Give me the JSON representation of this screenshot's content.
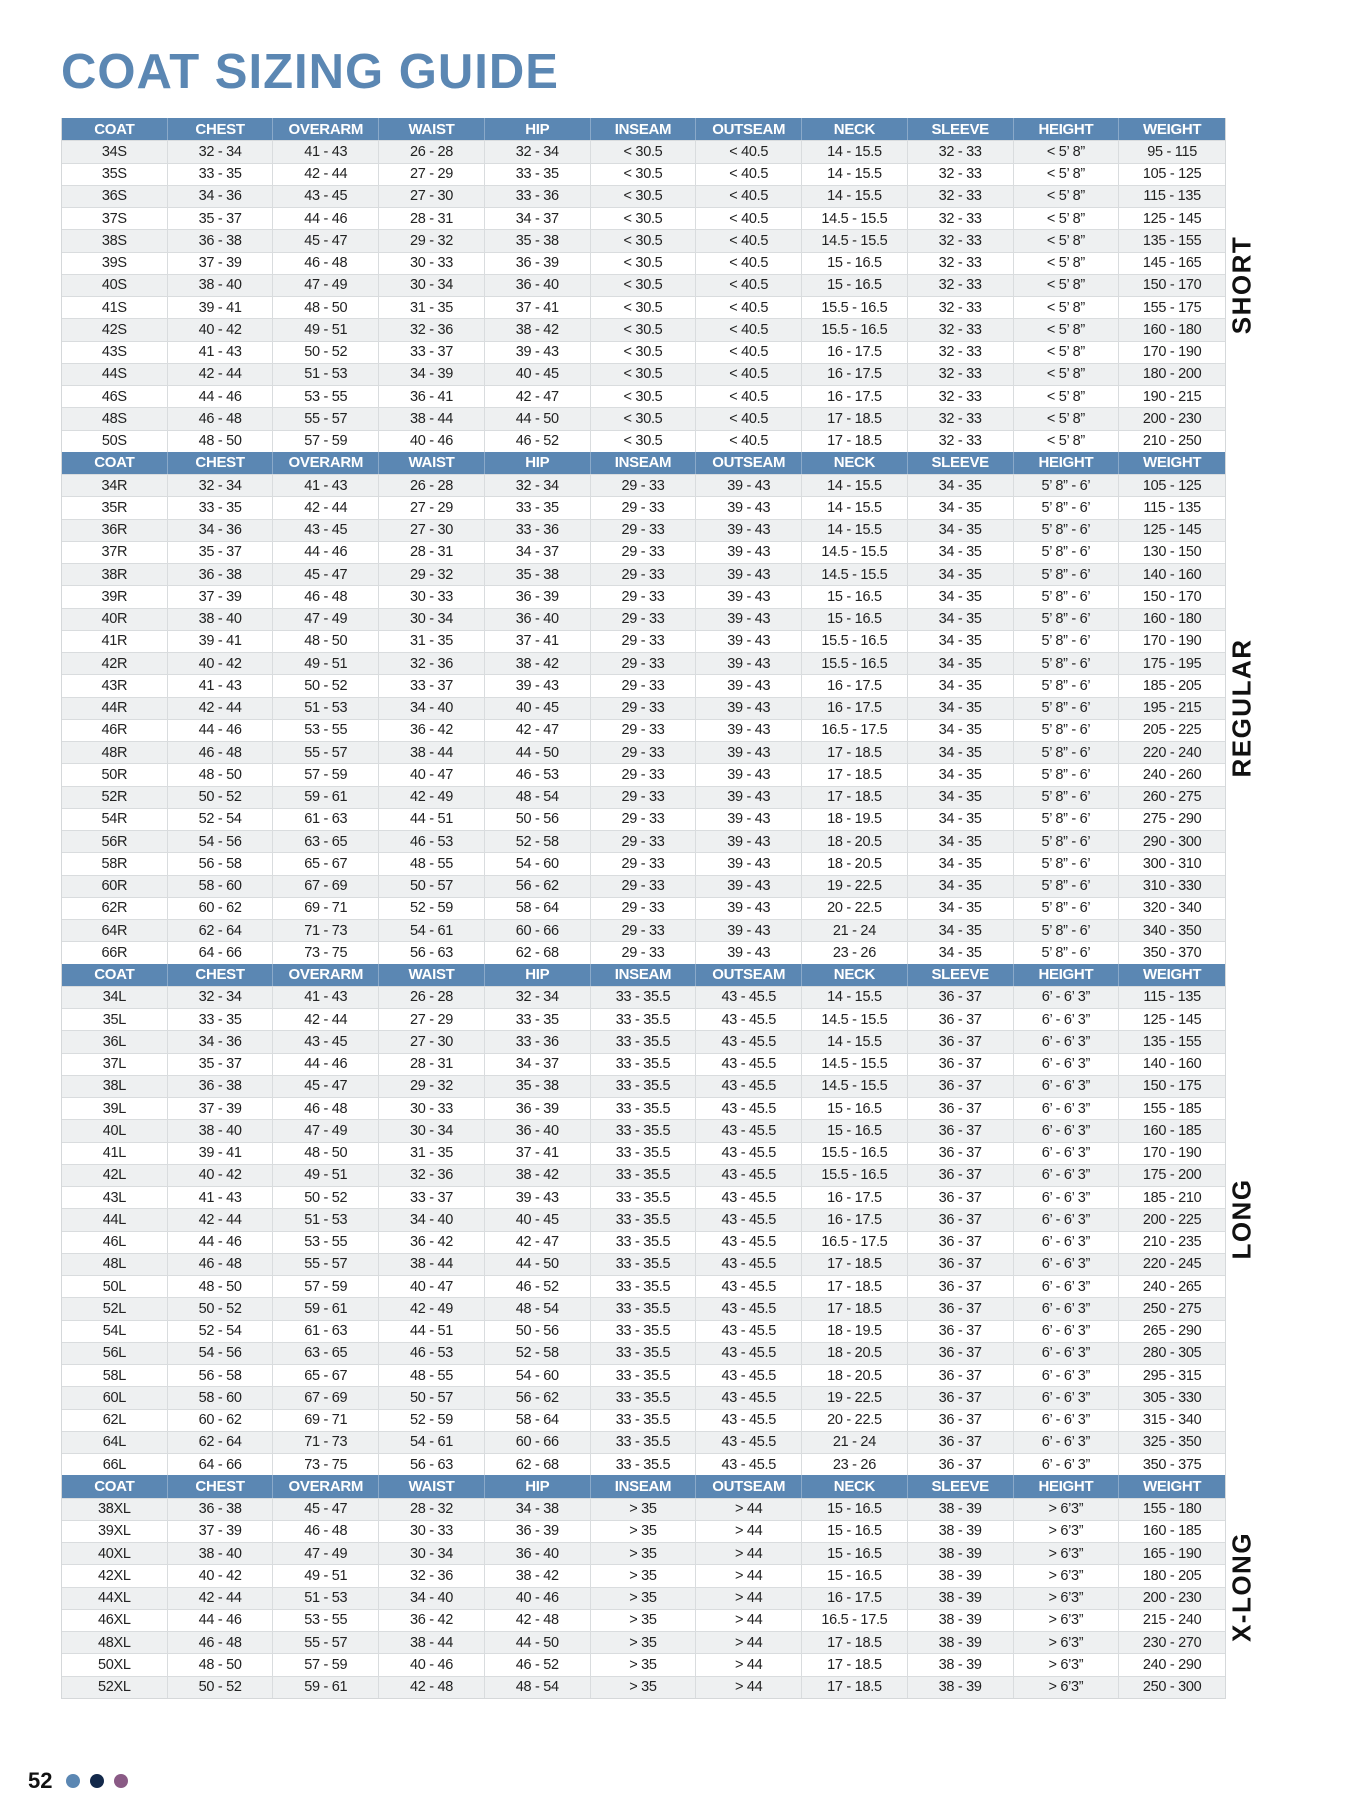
{
  "title": "COAT SIZING GUIDE",
  "columns": [
    "COAT",
    "CHEST",
    "OVERARM",
    "WAIST",
    "HIP",
    "INSEAM",
    "OUTSEAM",
    "NECK",
    "SLEEVE",
    "HEIGHT",
    "WEIGHT"
  ],
  "colors": {
    "accent": "#5b87b3",
    "header_text": "#ffffff",
    "row_alt": "#eef0f1",
    "dot1": "#5b87b3",
    "dot2": "#13294b",
    "dot3": "#8a5a85"
  },
  "sections": [
    {
      "label": "SHORT",
      "rows": [
        [
          "34S",
          "32 - 34",
          "41 - 43",
          "26 - 28",
          "32 - 34",
          "< 30.5",
          "< 40.5",
          "14 - 15.5",
          "32 - 33",
          "< 5’ 8”",
          "95 - 115"
        ],
        [
          "35S",
          "33 - 35",
          "42 - 44",
          "27 - 29",
          "33 - 35",
          "< 30.5",
          "< 40.5",
          "14 - 15.5",
          "32 - 33",
          "< 5’ 8”",
          "105 - 125"
        ],
        [
          "36S",
          "34 - 36",
          "43 - 45",
          "27 - 30",
          "33 - 36",
          "< 30.5",
          "< 40.5",
          "14 - 15.5",
          "32 - 33",
          "< 5’ 8”",
          "115 - 135"
        ],
        [
          "37S",
          "35 - 37",
          "44 - 46",
          "28 - 31",
          "34 - 37",
          "< 30.5",
          "< 40.5",
          "14.5 - 15.5",
          "32 - 33",
          "< 5’ 8”",
          "125 - 145"
        ],
        [
          "38S",
          "36 - 38",
          "45 - 47",
          "29 - 32",
          "35 - 38",
          "< 30.5",
          "< 40.5",
          "14.5 - 15.5",
          "32 - 33",
          "< 5’ 8”",
          "135 - 155"
        ],
        [
          "39S",
          "37 - 39",
          "46 - 48",
          "30 - 33",
          "36 - 39",
          "< 30.5",
          "< 40.5",
          "15 - 16.5",
          "32 - 33",
          "< 5’ 8”",
          "145 - 165"
        ],
        [
          "40S",
          "38 - 40",
          "47 - 49",
          "30 - 34",
          "36 - 40",
          "< 30.5",
          "< 40.5",
          "15 - 16.5",
          "32 - 33",
          "< 5’ 8”",
          "150 - 170"
        ],
        [
          "41S",
          "39 - 41",
          "48 - 50",
          "31 - 35",
          "37 - 41",
          "< 30.5",
          "< 40.5",
          "15.5 - 16.5",
          "32 - 33",
          "< 5’ 8”",
          "155 - 175"
        ],
        [
          "42S",
          "40 - 42",
          "49 - 51",
          "32 - 36",
          "38 - 42",
          "< 30.5",
          "< 40.5",
          "15.5 - 16.5",
          "32 - 33",
          "< 5’ 8”",
          "160 - 180"
        ],
        [
          "43S",
          "41 - 43",
          "50 - 52",
          "33 - 37",
          "39 - 43",
          "< 30.5",
          "< 40.5",
          "16 - 17.5",
          "32 - 33",
          "< 5’ 8”",
          "170 - 190"
        ],
        [
          "44S",
          "42 - 44",
          "51 - 53",
          "34 - 39",
          "40 - 45",
          "< 30.5",
          "< 40.5",
          "16 - 17.5",
          "32 - 33",
          "< 5’ 8”",
          "180 - 200"
        ],
        [
          "46S",
          "44 - 46",
          "53 - 55",
          "36 - 41",
          "42 - 47",
          "< 30.5",
          "< 40.5",
          "16 - 17.5",
          "32 - 33",
          "< 5’ 8”",
          "190 - 215"
        ],
        [
          "48S",
          "46 - 48",
          "55 - 57",
          "38 - 44",
          "44 - 50",
          "< 30.5",
          "< 40.5",
          "17 - 18.5",
          "32 - 33",
          "< 5’ 8”",
          "200 - 230"
        ],
        [
          "50S",
          "48 - 50",
          "57 - 59",
          "40 - 46",
          "46 - 52",
          "< 30.5",
          "< 40.5",
          "17 - 18.5",
          "32 - 33",
          "< 5’ 8”",
          "210 - 250"
        ]
      ]
    },
    {
      "label": "REGULAR",
      "rows": [
        [
          "34R",
          "32 - 34",
          "41 - 43",
          "26 - 28",
          "32 - 34",
          "29 - 33",
          "39 - 43",
          "14 - 15.5",
          "34 - 35",
          "5’ 8” - 6’",
          "105 - 125"
        ],
        [
          "35R",
          "33 - 35",
          "42 - 44",
          "27 - 29",
          "33 - 35",
          "29 - 33",
          "39 - 43",
          "14 - 15.5",
          "34 - 35",
          "5’ 8” - 6’",
          "115 - 135"
        ],
        [
          "36R",
          "34 - 36",
          "43 - 45",
          "27 - 30",
          "33 - 36",
          "29 - 33",
          "39 - 43",
          "14 - 15.5",
          "34 - 35",
          "5’ 8” - 6’",
          "125 - 145"
        ],
        [
          "37R",
          "35 - 37",
          "44 - 46",
          "28 - 31",
          "34 - 37",
          "29 - 33",
          "39 - 43",
          "14.5 - 15.5",
          "34 - 35",
          "5’ 8” - 6’",
          "130 - 150"
        ],
        [
          "38R",
          "36 - 38",
          "45 - 47",
          "29 - 32",
          "35 - 38",
          "29 - 33",
          "39 - 43",
          "14.5 - 15.5",
          "34 - 35",
          "5’ 8” - 6’",
          "140 - 160"
        ],
        [
          "39R",
          "37 - 39",
          "46 - 48",
          "30 - 33",
          "36 - 39",
          "29 - 33",
          "39 - 43",
          "15 - 16.5",
          "34 - 35",
          "5’ 8” - 6’",
          "150 - 170"
        ],
        [
          "40R",
          "38 - 40",
          "47 - 49",
          "30 - 34",
          "36 - 40",
          "29 - 33",
          "39 - 43",
          "15 - 16.5",
          "34 - 35",
          "5’ 8” - 6’",
          "160 - 180"
        ],
        [
          "41R",
          "39 - 41",
          "48 - 50",
          "31 - 35",
          "37 - 41",
          "29 - 33",
          "39 - 43",
          "15.5 - 16.5",
          "34 - 35",
          "5’ 8” - 6’",
          "170 - 190"
        ],
        [
          "42R",
          "40 - 42",
          "49 - 51",
          "32 - 36",
          "38 - 42",
          "29 - 33",
          "39 - 43",
          "15.5 - 16.5",
          "34 - 35",
          "5’ 8” - 6’",
          "175 - 195"
        ],
        [
          "43R",
          "41 - 43",
          "50 - 52",
          "33 - 37",
          "39 - 43",
          "29 - 33",
          "39 - 43",
          "16 - 17.5",
          "34 - 35",
          "5’ 8” - 6’",
          "185 - 205"
        ],
        [
          "44R",
          "42 - 44",
          "51 - 53",
          "34 - 40",
          "40 - 45",
          "29 - 33",
          "39 - 43",
          "16 - 17.5",
          "34 - 35",
          "5’ 8” - 6’",
          "195 - 215"
        ],
        [
          "46R",
          "44 - 46",
          "53 - 55",
          "36 - 42",
          "42 - 47",
          "29 - 33",
          "39 - 43",
          "16.5 - 17.5",
          "34 - 35",
          "5’ 8” - 6’",
          "205 - 225"
        ],
        [
          "48R",
          "46 - 48",
          "55 - 57",
          "38 - 44",
          "44 - 50",
          "29 - 33",
          "39 - 43",
          "17 - 18.5",
          "34 - 35",
          "5’ 8” - 6’",
          "220 - 240"
        ],
        [
          "50R",
          "48 - 50",
          "57 - 59",
          "40 - 47",
          "46 - 53",
          "29 - 33",
          "39 - 43",
          "17 - 18.5",
          "34 - 35",
          "5’ 8” - 6’",
          "240 - 260"
        ],
        [
          "52R",
          "50 - 52",
          "59 - 61",
          "42 - 49",
          "48 - 54",
          "29 - 33",
          "39 - 43",
          "17 - 18.5",
          "34 - 35",
          "5’ 8” - 6’",
          "260 - 275"
        ],
        [
          "54R",
          "52 - 54",
          "61 - 63",
          "44 - 51",
          "50 - 56",
          "29 - 33",
          "39 - 43",
          "18 - 19.5",
          "34 - 35",
          "5’ 8” - 6’",
          "275 - 290"
        ],
        [
          "56R",
          "54 - 56",
          "63 - 65",
          "46 - 53",
          "52 - 58",
          "29 - 33",
          "39 - 43",
          "18 - 20.5",
          "34 - 35",
          "5’ 8” - 6’",
          "290 - 300"
        ],
        [
          "58R",
          "56 - 58",
          "65 - 67",
          "48 - 55",
          "54 - 60",
          "29 - 33",
          "39 - 43",
          "18 - 20.5",
          "34 - 35",
          "5’ 8” - 6’",
          "300 - 310"
        ],
        [
          "60R",
          "58 - 60",
          "67 - 69",
          "50 - 57",
          "56 - 62",
          "29 - 33",
          "39 - 43",
          "19 - 22.5",
          "34 - 35",
          "5’ 8” - 6’",
          "310 - 330"
        ],
        [
          "62R",
          "60 - 62",
          "69 - 71",
          "52 - 59",
          "58 - 64",
          "29 - 33",
          "39 - 43",
          "20 - 22.5",
          "34 - 35",
          "5’ 8” - 6’",
          "320 - 340"
        ],
        [
          "64R",
          "62 - 64",
          "71 - 73",
          "54 - 61",
          "60 - 66",
          "29 - 33",
          "39 - 43",
          "21 - 24",
          "34 - 35",
          "5’ 8” - 6’",
          "340 - 350"
        ],
        [
          "66R",
          "64 - 66",
          "73 - 75",
          "56 - 63",
          "62 - 68",
          "29 - 33",
          "39 - 43",
          "23 - 26",
          "34 - 35",
          "5’ 8” - 6’",
          "350 - 370"
        ]
      ]
    },
    {
      "label": "LONG",
      "rows": [
        [
          "34L",
          "32 - 34",
          "41 - 43",
          "26 - 28",
          "32 - 34",
          "33 - 35.5",
          "43 - 45.5",
          "14 - 15.5",
          "36 - 37",
          "6’ - 6’ 3”",
          "115 - 135"
        ],
        [
          "35L",
          "33 - 35",
          "42 - 44",
          "27 - 29",
          "33 - 35",
          "33 - 35.5",
          "43 - 45.5",
          "14.5 - 15.5",
          "36 - 37",
          "6’ - 6’ 3”",
          "125 - 145"
        ],
        [
          "36L",
          "34 - 36",
          "43 - 45",
          "27 - 30",
          "33 - 36",
          "33 - 35.5",
          "43 - 45.5",
          "14 - 15.5",
          "36 - 37",
          "6’ - 6’ 3”",
          "135 - 155"
        ],
        [
          "37L",
          "35 - 37",
          "44 - 46",
          "28 - 31",
          "34 - 37",
          "33 - 35.5",
          "43 - 45.5",
          "14.5 - 15.5",
          "36 - 37",
          "6’ - 6’ 3”",
          "140 - 160"
        ],
        [
          "38L",
          "36 - 38",
          "45 - 47",
          "29 - 32",
          "35 - 38",
          "33 - 35.5",
          "43 - 45.5",
          "14.5 - 15.5",
          "36 - 37",
          "6’ - 6’ 3”",
          "150 - 175"
        ],
        [
          "39L",
          "37 - 39",
          "46 - 48",
          "30 - 33",
          "36 - 39",
          "33 - 35.5",
          "43 - 45.5",
          "15 - 16.5",
          "36 - 37",
          "6’ - 6’ 3”",
          "155 - 185"
        ],
        [
          "40L",
          "38 - 40",
          "47 - 49",
          "30 - 34",
          "36 - 40",
          "33 - 35.5",
          "43 - 45.5",
          "15 - 16.5",
          "36 - 37",
          "6’ - 6’ 3”",
          "160 - 185"
        ],
        [
          "41L",
          "39 - 41",
          "48 - 50",
          "31 - 35",
          "37 - 41",
          "33 - 35.5",
          "43 - 45.5",
          "15.5 - 16.5",
          "36 - 37",
          "6’ - 6’ 3”",
          "170 - 190"
        ],
        [
          "42L",
          "40 - 42",
          "49 - 51",
          "32 - 36",
          "38 - 42",
          "33 - 35.5",
          "43 - 45.5",
          "15.5 - 16.5",
          "36 - 37",
          "6’ - 6’ 3”",
          "175 - 200"
        ],
        [
          "43L",
          "41 - 43",
          "50 - 52",
          "33 - 37",
          "39 - 43",
          "33 - 35.5",
          "43 - 45.5",
          "16 - 17.5",
          "36 - 37",
          "6’ - 6’ 3”",
          "185 - 210"
        ],
        [
          "44L",
          "42 - 44",
          "51 - 53",
          "34 - 40",
          "40 - 45",
          "33 - 35.5",
          "43 - 45.5",
          "16 - 17.5",
          "36 - 37",
          "6’ - 6’ 3”",
          "200 - 225"
        ],
        [
          "46L",
          "44 - 46",
          "53 - 55",
          "36 - 42",
          "42 - 47",
          "33 - 35.5",
          "43 - 45.5",
          "16.5 - 17.5",
          "36 - 37",
          "6’ - 6’ 3”",
          "210 - 235"
        ],
        [
          "48L",
          "46 - 48",
          "55 - 57",
          "38 - 44",
          "44 - 50",
          "33 - 35.5",
          "43 - 45.5",
          "17 - 18.5",
          "36 - 37",
          "6’ - 6’ 3”",
          "220 - 245"
        ],
        [
          "50L",
          "48 - 50",
          "57 - 59",
          "40 - 47",
          "46 - 52",
          "33 - 35.5",
          "43 - 45.5",
          "17 - 18.5",
          "36 - 37",
          "6’ - 6’ 3”",
          "240 - 265"
        ],
        [
          "52L",
          "50 - 52",
          "59 - 61",
          "42 - 49",
          "48 - 54",
          "33 - 35.5",
          "43 - 45.5",
          "17 - 18.5",
          "36 - 37",
          "6’ - 6’ 3”",
          "250 - 275"
        ],
        [
          "54L",
          "52 - 54",
          "61 - 63",
          "44 - 51",
          "50 - 56",
          "33 - 35.5",
          "43 - 45.5",
          "18 - 19.5",
          "36 - 37",
          "6’ - 6’ 3”",
          "265 - 290"
        ],
        [
          "56L",
          "54 - 56",
          "63 - 65",
          "46 - 53",
          "52 - 58",
          "33 - 35.5",
          "43 - 45.5",
          "18 - 20.5",
          "36 - 37",
          "6’ - 6’ 3”",
          "280 - 305"
        ],
        [
          "58L",
          "56 - 58",
          "65 - 67",
          "48 - 55",
          "54 - 60",
          "33 - 35.5",
          "43 - 45.5",
          "18 - 20.5",
          "36 - 37",
          "6’ - 6’ 3”",
          "295 - 315"
        ],
        [
          "60L",
          "58 - 60",
          "67 - 69",
          "50 - 57",
          "56 - 62",
          "33 - 35.5",
          "43 - 45.5",
          "19 - 22.5",
          "36 - 37",
          "6’ - 6’ 3”",
          "305 - 330"
        ],
        [
          "62L",
          "60 - 62",
          "69 - 71",
          "52 - 59",
          "58 - 64",
          "33 - 35.5",
          "43 - 45.5",
          "20 - 22.5",
          "36 - 37",
          "6’ - 6’ 3”",
          "315 - 340"
        ],
        [
          "64L",
          "62 - 64",
          "71 - 73",
          "54 - 61",
          "60 - 66",
          "33 - 35.5",
          "43 - 45.5",
          "21 - 24",
          "36 - 37",
          "6’ - 6’ 3”",
          "325 - 350"
        ],
        [
          "66L",
          "64 - 66",
          "73 - 75",
          "56 - 63",
          "62 - 68",
          "33 - 35.5",
          "43 - 45.5",
          "23 - 26",
          "36 - 37",
          "6’ - 6’ 3”",
          "350 - 375"
        ]
      ]
    },
    {
      "label": "X-LONG",
      "rows": [
        [
          "38XL",
          "36 - 38",
          "45 - 47",
          "28 - 32",
          "34 - 38",
          "> 35",
          "> 44",
          "15 - 16.5",
          "38 - 39",
          "> 6’3”",
          "155 - 180"
        ],
        [
          "39XL",
          "37 - 39",
          "46 - 48",
          "30 - 33",
          "36 - 39",
          "> 35",
          "> 44",
          "15 - 16.5",
          "38 - 39",
          "> 6’3”",
          "160 - 185"
        ],
        [
          "40XL",
          "38 - 40",
          "47 - 49",
          "30 - 34",
          "36 - 40",
          "> 35",
          "> 44",
          "15 - 16.5",
          "38 - 39",
          "> 6’3”",
          "165 - 190"
        ],
        [
          "42XL",
          "40 - 42",
          "49 - 51",
          "32 - 36",
          "38 - 42",
          "> 35",
          "> 44",
          "15 - 16.5",
          "38 - 39",
          "> 6’3”",
          "180 - 205"
        ],
        [
          "44XL",
          "42 - 44",
          "51 - 53",
          "34 - 40",
          "40 - 46",
          "> 35",
          "> 44",
          "16 - 17.5",
          "38 - 39",
          "> 6’3”",
          "200 - 230"
        ],
        [
          "46XL",
          "44 - 46",
          "53 - 55",
          "36 - 42",
          "42 - 48",
          "> 35",
          "> 44",
          "16.5 - 17.5",
          "38 - 39",
          "> 6’3”",
          "215 - 240"
        ],
        [
          "48XL",
          "46 - 48",
          "55 - 57",
          "38 - 44",
          "44 - 50",
          "> 35",
          "> 44",
          "17 - 18.5",
          "38 - 39",
          "> 6’3”",
          "230 - 270"
        ],
        [
          "50XL",
          "48 - 50",
          "57 - 59",
          "40 - 46",
          "46 - 52",
          "> 35",
          "> 44",
          "17 - 18.5",
          "38 - 39",
          "> 6’3”",
          "240 - 290"
        ],
        [
          "52XL",
          "50 - 52",
          "59 - 61",
          "42 - 48",
          "48 - 54",
          "> 35",
          "> 44",
          "17 - 18.5",
          "38 - 39",
          "> 6’3”",
          "250 - 300"
        ]
      ]
    }
  ],
  "footer": {
    "page_number": "52"
  }
}
